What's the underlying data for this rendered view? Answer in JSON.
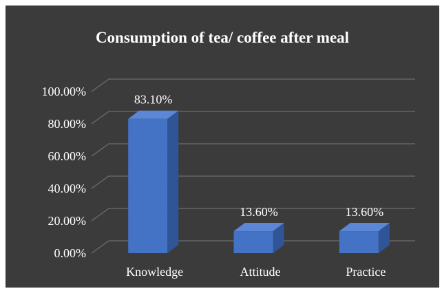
{
  "chart_data": {
    "type": "bar",
    "title": "Consumption of tea/ coffee after meal",
    "categories": [
      "Knowledge",
      "Attitude",
      "Practice"
    ],
    "values": [
      83.1,
      13.6,
      13.6
    ],
    "data_labels": [
      "83.10%",
      "13.60%",
      "13.60%"
    ],
    "yticks": [
      "0.00%",
      "20.00%",
      "40.00%",
      "60.00%",
      "80.00%",
      "100.00%"
    ],
    "ylim": [
      0,
      100
    ],
    "grid": true,
    "legend": "none",
    "style": "3d-column",
    "colors": {
      "background": "#3b3b3b",
      "bar_front": "#4472c4",
      "bar_side": "#2f5597",
      "bar_top": "#5b87d6",
      "gridline": "#6e6e6e",
      "text": "#ffffff"
    }
  }
}
